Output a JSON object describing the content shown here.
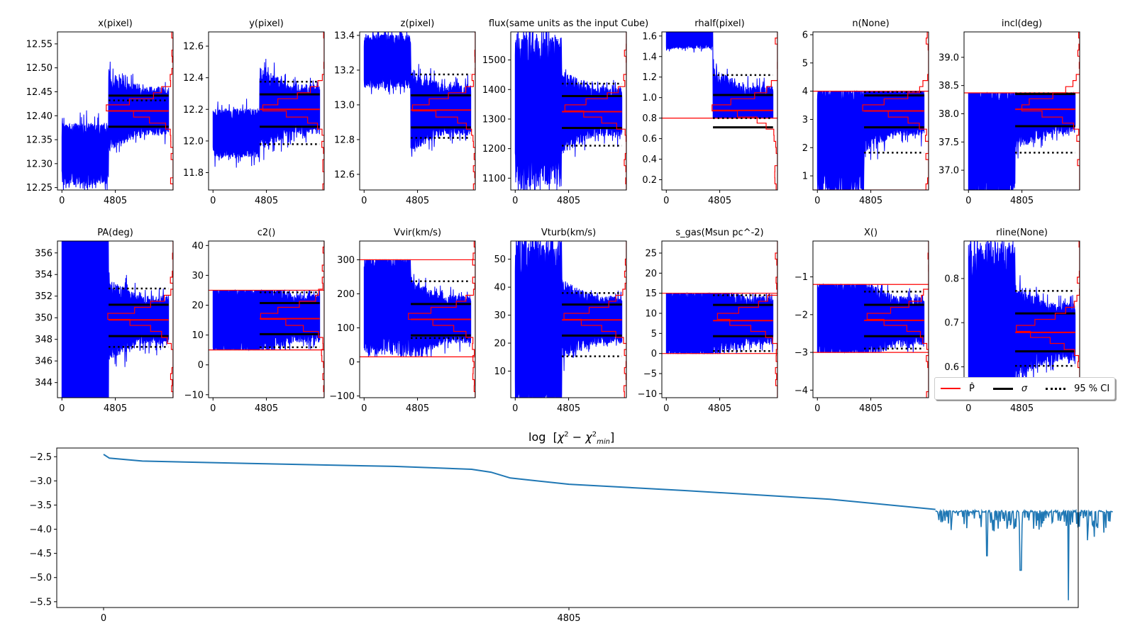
{
  "chart_data": {
    "type": "line",
    "description": "MCMC trace plots of model parameters with posterior histograms, plus chi-square convergence trace",
    "x_ticks": [
      0,
      4805
    ],
    "x_tick_labels": [
      "0",
      "4805"
    ],
    "colors": {
      "trace": "#0000ff",
      "estimate": "#ff0000",
      "sigma": "#000000",
      "ci": "#000000",
      "chi_line": "#1f77b4"
    },
    "panels": [
      {
        "title": "x(pixel)",
        "ylim": [
          12.245,
          12.575
        ],
        "yticks": [
          12.25,
          12.3,
          12.35,
          12.4,
          12.45,
          12.5,
          12.55
        ],
        "ytick_labels": [
          "12.25",
          "12.30",
          "12.35",
          "12.40",
          "12.45",
          "12.50",
          "12.55"
        ],
        "estimate": 12.41,
        "sigma_low": 12.377,
        "sigma_high": 12.442,
        "ci_low": 12.377,
        "ci_high": 12.432,
        "burn_start_level": 12.32,
        "burn_spread": 0.05,
        "bounds": []
      },
      {
        "title": "y(pixel)",
        "ylim": [
          11.69,
          12.69
        ],
        "yticks": [
          11.8,
          12.0,
          12.2,
          12.4,
          12.6
        ],
        "ytick_labels": [
          "11.8",
          "12.0",
          "12.2",
          "12.4",
          "12.6"
        ],
        "estimate": 12.2,
        "sigma_low": 12.09,
        "sigma_high": 12.295,
        "ci_low": 11.98,
        "ci_high": 12.375,
        "burn_start_level": 12.05,
        "burn_spread": 0.12,
        "bounds": []
      },
      {
        "title": "z(pixel)",
        "ylim": [
          12.51,
          13.42
        ],
        "yticks": [
          12.6,
          12.8,
          13.0,
          13.2,
          13.4
        ],
        "ytick_labels": [
          "12.6",
          "12.8",
          "13.0",
          "13.2",
          "13.4"
        ],
        "estimate": 12.97,
        "sigma_low": 12.87,
        "sigma_high": 13.055,
        "ci_low": 12.81,
        "ci_high": 13.175,
        "burn_start_level": 13.25,
        "burn_spread": 0.12,
        "bounds": []
      },
      {
        "title": "flux(same units as the input Cube)",
        "ylim": [
          1060,
          1595
        ],
        "yticks": [
          1100,
          1200,
          1300,
          1400,
          1500
        ],
        "ytick_labels": [
          "1100",
          "1200",
          "1300",
          "1400",
          "1500"
        ],
        "estimate": 1325,
        "sigma_low": 1270,
        "sigma_high": 1378,
        "ci_low": 1210,
        "ci_high": 1420,
        "burn_start_level": 1330,
        "burn_spread": 200,
        "bounds": []
      },
      {
        "title": "rhalf(pixel)",
        "ylim": [
          0.1,
          1.64
        ],
        "yticks": [
          0.2,
          0.4,
          0.6,
          0.8,
          1.0,
          1.2,
          1.4,
          1.6
        ],
        "ytick_labels": [
          "0.2",
          "0.4",
          "0.6",
          "0.8",
          "1.0",
          "1.2",
          "1.4",
          "1.6"
        ],
        "estimate": 0.875,
        "sigma_low": 0.71,
        "sigma_high": 1.025,
        "ci_low": 0.8,
        "ci_high": 1.22,
        "burn_start_level": 1.58,
        "burn_spread": 0.08,
        "bounds": [
          0.8
        ]
      },
      {
        "title": "n(None)",
        "ylim": [
          0.5,
          6.1
        ],
        "yticks": [
          1,
          2,
          3,
          4,
          5,
          6
        ],
        "ytick_labels": [
          "1",
          "2",
          "3",
          "4",
          "5",
          "6"
        ],
        "estimate": 3.3,
        "sigma_low": 2.72,
        "sigma_high": 3.85,
        "ci_low": 1.82,
        "ci_high": 3.97,
        "burn_start_level": 2.3,
        "burn_spread": 1.6,
        "bounds": [
          0.5,
          4.0
        ]
      },
      {
        "title": "incl(deg)",
        "ylim": [
          36.65,
          39.45
        ],
        "yticks": [
          37.0,
          37.5,
          38.0,
          38.5,
          39.0
        ],
        "ytick_labels": [
          "37.0",
          "37.5",
          "38.0",
          "38.5",
          "39.0"
        ],
        "estimate": 38.08,
        "sigma_low": 37.78,
        "sigma_high": 38.35,
        "ci_low": 37.31,
        "ci_high": 38.36,
        "burn_start_level": 37.5,
        "burn_spread": 0.85,
        "bounds": [
          38.37
        ]
      },
      {
        "title": "PA(deg)",
        "ylim": [
          342.6,
          357.1
        ],
        "yticks": [
          344,
          346,
          348,
          350,
          352,
          354,
          356
        ],
        "ytick_labels": [
          "344",
          "346",
          "348",
          "350",
          "352",
          "354",
          "356"
        ],
        "estimate": 349.8,
        "sigma_low": 348.3,
        "sigma_high": 351.2,
        "ci_low": 347.3,
        "ci_high": 352.7,
        "burn_start_level": 349.8,
        "burn_spread": 10,
        "bounds": []
      },
      {
        "title": "c2()",
        "ylim": [
          -11,
          41.5
        ],
        "yticks": [
          -10,
          0,
          10,
          20,
          30,
          40
        ],
        "ytick_labels": [
          "−10",
          "0",
          "10",
          "20",
          "30",
          "40"
        ],
        "estimate": 15.5,
        "sigma_low": 10.3,
        "sigma_high": 20.7,
        "ci_low": 5.9,
        "ci_high": 24.3,
        "burn_start_level": 15,
        "burn_spread": 10,
        "bounds": [
          5,
          25
        ]
      },
      {
        "title": "Vvir(km/s)",
        "ylim": [
          -105,
          355
        ],
        "yticks": [
          -100,
          0,
          100,
          200,
          300
        ],
        "ytick_labels": [
          "−100",
          "0",
          "100",
          "200",
          "300"
        ],
        "estimate": 125,
        "sigma_low": 78,
        "sigma_high": 170,
        "ci_low": 70,
        "ci_high": 237,
        "burn_start_level": 175,
        "burn_spread": 120,
        "bounds": [
          15,
          300
        ]
      },
      {
        "title": "Vturb(km/s)",
        "ylim": [
          0.5,
          56.5
        ],
        "yticks": [
          10,
          20,
          30,
          40,
          50
        ],
        "ytick_labels": [
          "10",
          "20",
          "30",
          "40",
          "50"
        ],
        "estimate": 28.3,
        "sigma_low": 22.7,
        "sigma_high": 33.8,
        "ci_low": 15.3,
        "ci_high": 37.9,
        "burn_start_level": 26,
        "burn_spread": 25,
        "bounds": []
      },
      {
        "title": "s_gas(Msun pc^-2)",
        "ylim": [
          -11,
          28
        ],
        "yticks": [
          -10,
          -5,
          0,
          5,
          10,
          15,
          20,
          25
        ],
        "ytick_labels": [
          "−10",
          "−5",
          "0",
          "5",
          "10",
          "15",
          "20",
          "25"
        ],
        "estimate": 8.2,
        "sigma_low": 4.3,
        "sigma_high": 12.1,
        "ci_low": 0.6,
        "ci_high": 14.5,
        "burn_start_level": 7.5,
        "burn_spread": 7.5,
        "bounds": [
          0,
          15
        ]
      },
      {
        "title": "X()",
        "ylim": [
          -4.2,
          -0.05
        ],
        "yticks": [
          -4,
          -3,
          -2,
          -1
        ],
        "ytick_labels": [
          "−4",
          "−3",
          "−2",
          "−1"
        ],
        "estimate": -2.15,
        "sigma_low": -2.57,
        "sigma_high": -1.74,
        "ci_low": -2.9,
        "ci_high": -1.39,
        "burn_start_level": -2.1,
        "burn_spread": 0.9,
        "bounds": [
          -3.0,
          -1.2
        ]
      },
      {
        "title": "rline(None)",
        "ylim": [
          0.53,
          0.885
        ],
        "yticks": [
          0.6,
          0.7,
          0.8
        ],
        "ytick_labels": [
          "0.6",
          "0.7",
          "0.8"
        ],
        "estimate": 0.678,
        "sigma_low": 0.635,
        "sigma_high": 0.721,
        "ci_low": 0.602,
        "ci_high": 0.772,
        "burn_start_level": 0.69,
        "burn_spread": 0.15,
        "bounds": []
      }
    ],
    "chi2_panel": {
      "title": "log [χ² − χ²min]",
      "ylim": [
        -5.62,
        -2.32
      ],
      "yticks": [
        -5.5,
        -5.0,
        -4.5,
        -4.0,
        -3.5,
        -3.0,
        -2.5
      ],
      "ytick_labels": [
        "−5.5",
        "−5.0",
        "−4.5",
        "−4.0",
        "−3.5",
        "−3.0",
        "−2.5"
      ],
      "x_ticks": [
        0,
        4805
      ],
      "x_tick_labels": [
        "0",
        "4805"
      ],
      "xlim": [
        -480,
        10100
      ],
      "series_keypoints": [
        {
          "x": 0,
          "y": -2.45
        },
        {
          "x": 60,
          "y": -2.53
        },
        {
          "x": 400,
          "y": -2.59
        },
        {
          "x": 1500,
          "y": -2.64
        },
        {
          "x": 3000,
          "y": -2.7
        },
        {
          "x": 3800,
          "y": -2.76
        },
        {
          "x": 4000,
          "y": -2.82
        },
        {
          "x": 4200,
          "y": -2.94
        },
        {
          "x": 4805,
          "y": -3.07
        },
        {
          "x": 6000,
          "y": -3.2
        },
        {
          "x": 7500,
          "y": -3.38
        },
        {
          "x": 8590,
          "y": -3.59
        }
      ],
      "noise_region": {
        "x_start": 8590,
        "x_end": 10420,
        "level": -3.63,
        "min_dip": -5.47,
        "dip_x": 9960
      }
    },
    "legend": {
      "position": "lower-right",
      "entries": [
        {
          "label": "P̂",
          "style": "solid",
          "color": "#ff0000"
        },
        {
          "label": "σ",
          "style": "solid-thick",
          "color": "#000000"
        },
        {
          "label": "95 % CI",
          "style": "dotted",
          "color": "#000000"
        }
      ]
    }
  }
}
